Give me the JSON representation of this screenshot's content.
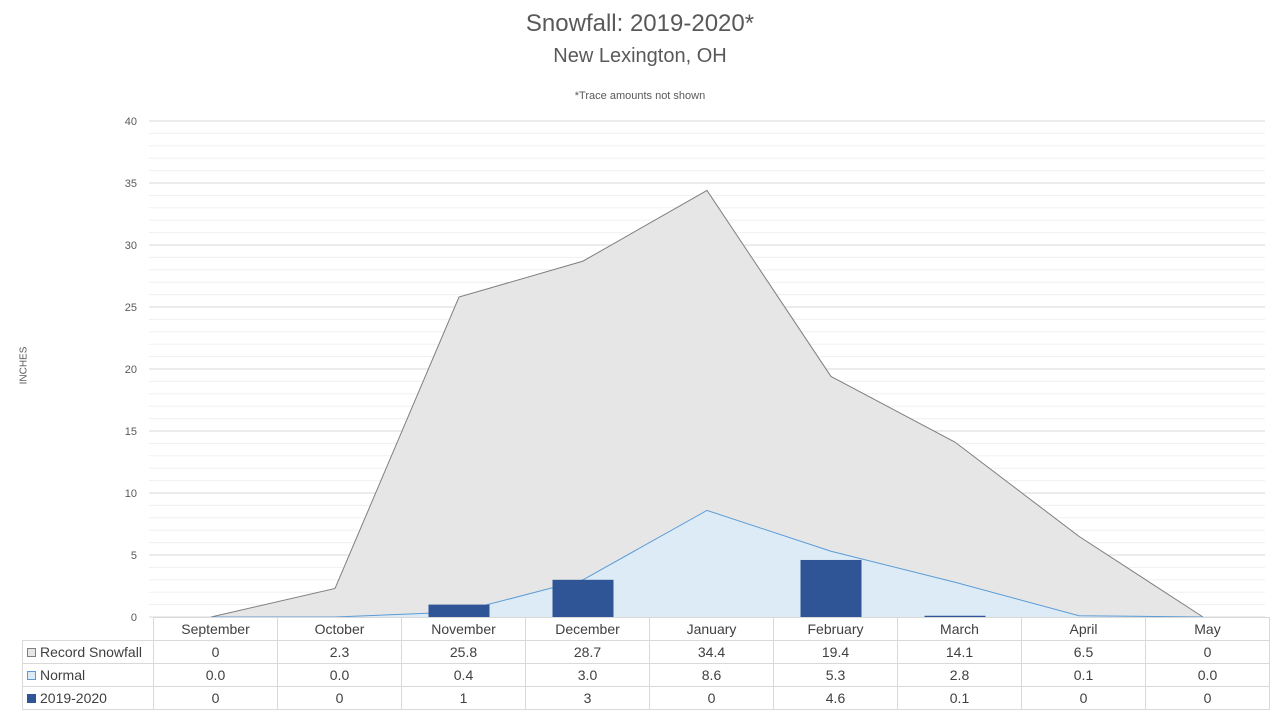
{
  "chart_data": {
    "type": "area",
    "title": "Snowfall: 2019-2020*",
    "subtitle": "New Lexington, OH",
    "note": "*Trace amounts not shown",
    "ylabel": "INCHES",
    "ylim": [
      0,
      40
    ],
    "yticks": [
      0,
      5,
      10,
      15,
      20,
      25,
      30,
      35,
      40
    ],
    "grid": true,
    "categories": [
      "September",
      "October",
      "November",
      "December",
      "January",
      "February",
      "March",
      "April",
      "May"
    ],
    "series": [
      {
        "name": "Record Snowfall",
        "kind": "area",
        "color": "#e6e6e6",
        "stroke": "#7f7f7f",
        "values": [
          0,
          2.3,
          25.8,
          28.7,
          34.4,
          19.4,
          14.1,
          6.5,
          0
        ],
        "labels": [
          "0",
          "2.3",
          "25.8",
          "28.7",
          "34.4",
          "19.4",
          "14.1",
          "6.5",
          "0"
        ]
      },
      {
        "name": "Normal",
        "kind": "area",
        "color": "#ddebf7",
        "stroke": "#5b9bd5",
        "values": [
          0.0,
          0.0,
          0.4,
          3.0,
          8.6,
          5.3,
          2.8,
          0.1,
          0.0
        ],
        "labels": [
          "0.0",
          "0.0",
          "0.4",
          "3.0",
          "8.6",
          "5.3",
          "2.8",
          "0.1",
          "0.0"
        ]
      },
      {
        "name": "2019-2020",
        "kind": "bar",
        "color": "#2f5597",
        "values": [
          0,
          0,
          1,
          3,
          0,
          4.6,
          0.1,
          0,
          0
        ],
        "labels": [
          "0",
          "0",
          "1",
          "3",
          "0",
          "4.6",
          "0.1",
          "0",
          "0"
        ]
      }
    ]
  }
}
